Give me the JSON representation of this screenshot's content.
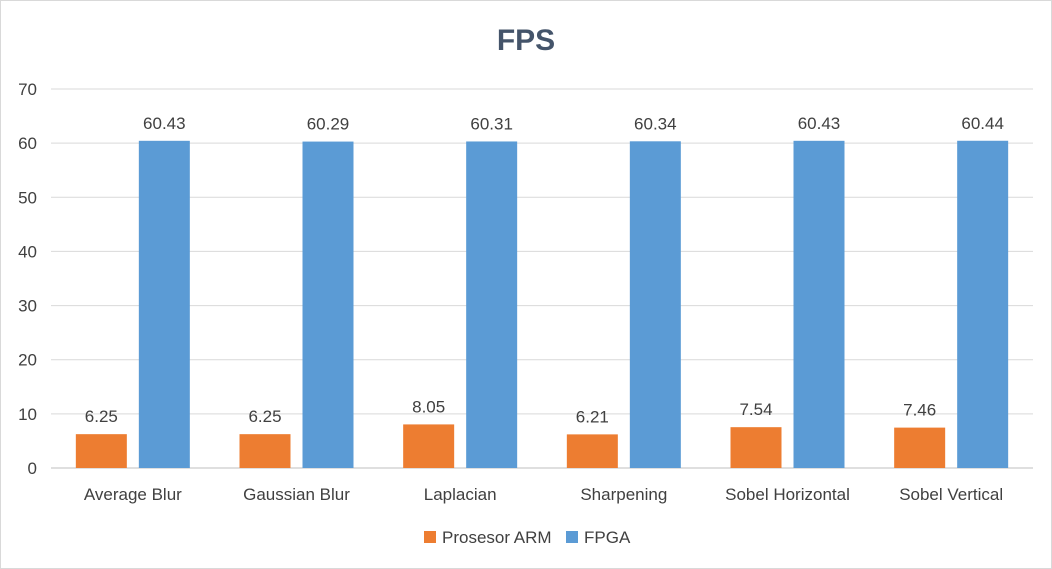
{
  "chart_data": {
    "type": "bar",
    "title": "FPS",
    "categories": [
      "Average Blur",
      "Gaussian Blur",
      "Laplacian",
      "Sharpening",
      "Sobel Horizontal",
      "Sobel Vertical"
    ],
    "series": [
      {
        "name": "Prosesor ARM",
        "color": "#ed7d31",
        "values": [
          6.25,
          6.25,
          8.05,
          6.21,
          7.54,
          7.46
        ],
        "labels": [
          "6.25",
          "6.25",
          "8.05",
          "6.21",
          "7.54",
          "7.46"
        ]
      },
      {
        "name": "FPGA",
        "color": "#5b9bd5",
        "values": [
          60.43,
          60.29,
          60.31,
          60.34,
          60.43,
          60.44
        ],
        "labels": [
          "60.43",
          "60.29",
          "60.31",
          "60.34",
          "60.43",
          "60.44"
        ]
      }
    ],
    "ylim": [
      0,
      70
    ],
    "yticks": [
      0,
      10,
      20,
      30,
      40,
      50,
      60,
      70
    ],
    "ytick_labels": [
      "0",
      "10",
      "20",
      "30",
      "40",
      "50",
      "60",
      "70"
    ],
    "grid": true,
    "legend": "bottom"
  }
}
